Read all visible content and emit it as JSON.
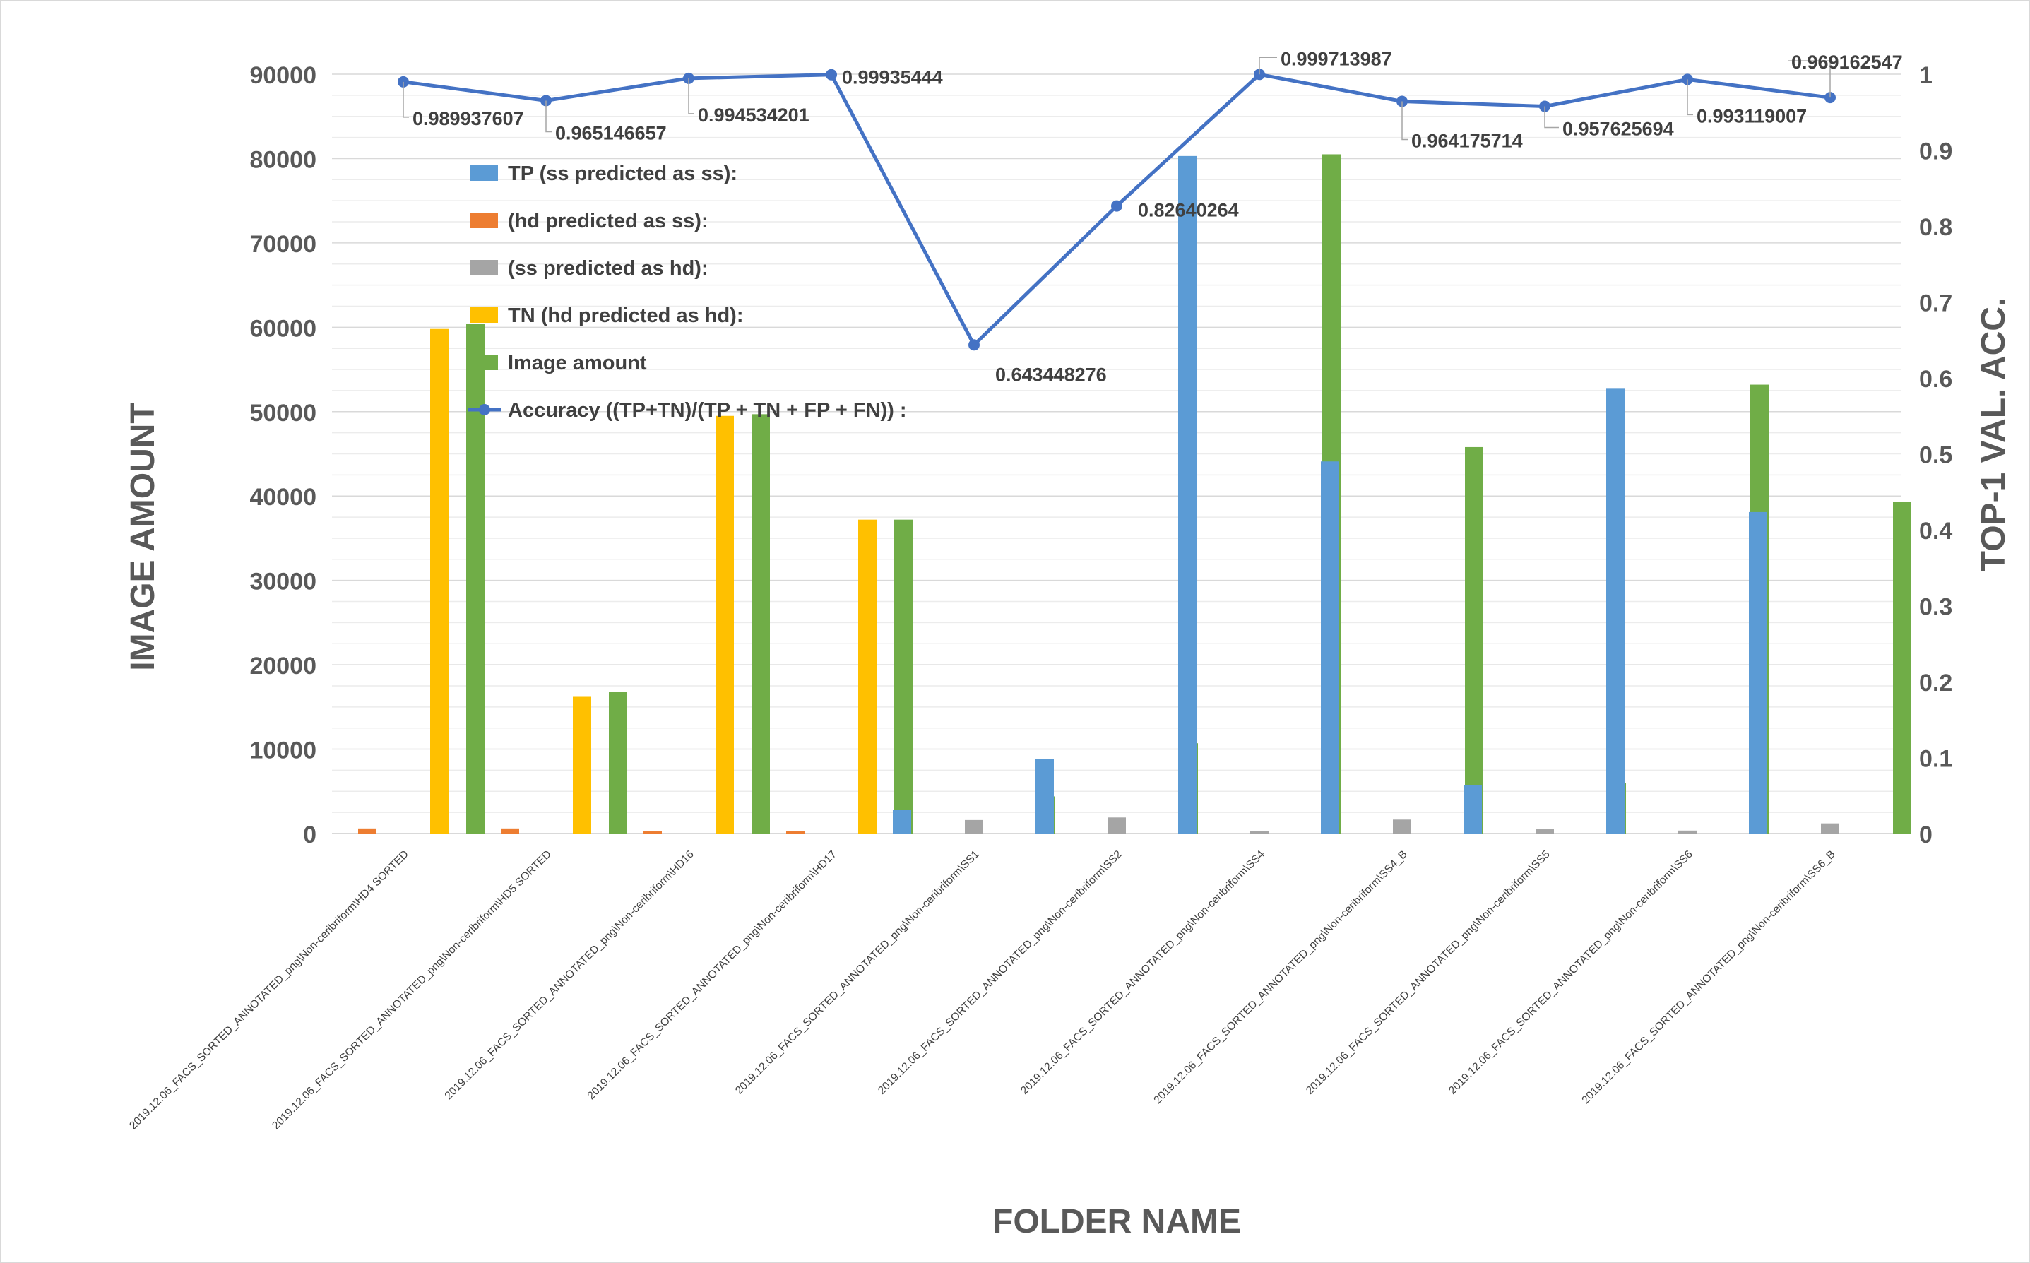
{
  "chart_data": {
    "type": "bar",
    "title": "",
    "xlabel": "FOLDER NAME",
    "ylabel": "IMAGE AMOUNT",
    "y2label": "TOP-1 VAL. ACC.",
    "ylim": [
      0,
      90000
    ],
    "y2lim": [
      0,
      1
    ],
    "y_ticks": [
      "0",
      "10000",
      "20000",
      "30000",
      "40000",
      "50000",
      "60000",
      "70000",
      "80000",
      "90000"
    ],
    "y2_ticks": [
      "0",
      "0.1",
      "0.2",
      "0.3",
      "0.4",
      "0.5",
      "0.6",
      "0.7",
      "0.8",
      "0.9",
      "1"
    ],
    "grid": true,
    "legend_position": "top-left inside plot",
    "categories": [
      "2019.12.06_FACS_SORTED_ANNOTATED_png\\Non-ceribriform\\HD4 SORTED",
      "2019.12.06_FACS_SORTED_ANNOTATED_png\\Non-ceribriform\\HD5 SORTED",
      "2019.12.06_FACS_SORTED_ANNOTATED_png\\Non-ceribriform\\HD16",
      "2019.12.06_FACS_SORTED_ANNOTATED_png\\Non-ceribriform\\HD17",
      "2019.12.06_FACS_SORTED_ANNOTATED_png\\Non-ceribriform\\SS1",
      "2019.12.06_FACS_SORTED_ANNOTATED_png\\Non-ceribriform\\SS2",
      "2019.12.06_FACS_SORTED_ANNOTATED_png\\Non-ceribriform\\SS4",
      "2019.12.06_FACS_SORTED_ANNOTATED_png\\Non-ceribriform\\SS4_B",
      "2019.12.06_FACS_SORTED_ANNOTATED_png\\Non-ceribriform\\SS5",
      "2019.12.06_FACS_SORTED_ANNOTATED_png\\Non-ceribriform\\SS6",
      "2019.12.06_FACS_SORTED_ANNOTATED_png\\Non-ceribriform\\SS6_B"
    ],
    "series": [
      {
        "name": "TP (ss predicted as ss):",
        "type": "bar",
        "axis": "left",
        "color": "#5B9BD5",
        "values": [
          0,
          0,
          0,
          0,
          2800,
          8800,
          80300,
          44100,
          5700,
          52800,
          38100
        ]
      },
      {
        "name": " (hd predicted as ss):",
        "type": "bar",
        "axis": "left",
        "color": "#ED7D31",
        "values": [
          600,
          600,
          250,
          250,
          0,
          0,
          0,
          0,
          0,
          0,
          0
        ]
      },
      {
        "name": " (ss predicted as hd):",
        "type": "bar",
        "axis": "left",
        "color": "#A5A5A5",
        "values": [
          0,
          0,
          0,
          0,
          1600,
          1900,
          250,
          1650,
          500,
          350,
          1200
        ]
      },
      {
        "name": "TN (hd predicted as hd):",
        "type": "bar",
        "axis": "left",
        "color": "#FFC000",
        "values": [
          59800,
          16200,
          49500,
          37200,
          0,
          0,
          0,
          0,
          0,
          0,
          0
        ]
      },
      {
        "name": "Image amount",
        "type": "bar",
        "axis": "left",
        "color": "#70AD47",
        "values": [
          60400,
          16800,
          49700,
          37200,
          4400,
          10700,
          80500,
          45800,
          6000,
          53200,
          39300
        ]
      },
      {
        "name": "Accuracy ((TP+TN)/(TP + TN + FP + FN)) :",
        "type": "line",
        "axis": "right",
        "color": "#4472C4",
        "values": [
          0.989937607,
          0.965146657,
          0.994534201,
          0.99935444,
          0.643448276,
          0.82640264,
          0.999713987,
          0.964175714,
          0.957625694,
          0.993119007,
          0.969162547
        ],
        "labels": [
          "0.989937607",
          "0.965146657",
          "0.994534201",
          "0.99935444",
          "0.643448276",
          "0.82640264",
          "0.999713987",
          "0.964175714",
          "0.957625694",
          "0.993119007",
          "0.969162547"
        ]
      }
    ]
  }
}
